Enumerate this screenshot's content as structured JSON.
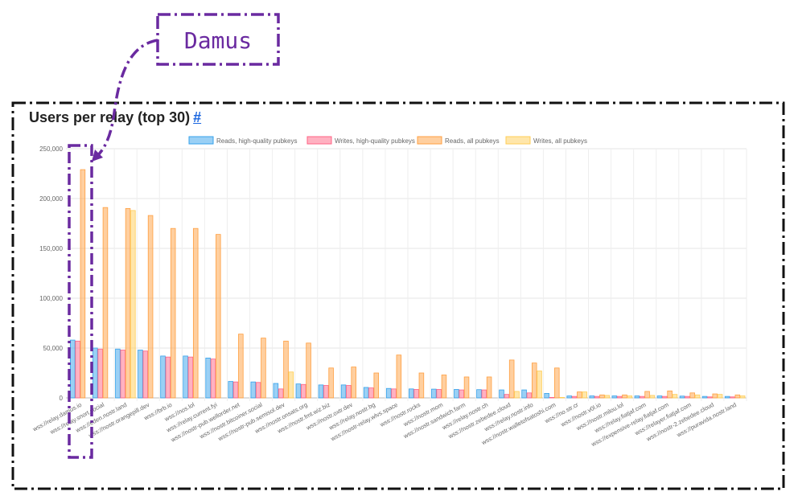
{
  "card": {
    "title": "Users per relay (top 30)",
    "anchor": "#"
  },
  "annotation": {
    "label": "Damus"
  },
  "colors": {
    "annotation": "#6a2aa0",
    "reads_hq": "#36a2eb",
    "writes_hq": "#ff6384",
    "reads_all": "#ff9f40",
    "writes_all": "#ffcd56"
  },
  "chart_data": {
    "type": "bar",
    "ylim": [
      0,
      250000
    ],
    "yticks": [
      "0",
      "50,000",
      "100,000",
      "150,000",
      "200,000",
      "250,000"
    ],
    "grid": true,
    "legend_position": "top",
    "categories": [
      "wss://relay.damus.io",
      "wss://relay.snort.social",
      "wss://eden.nostr.land",
      "wss://nostr.orangepill.dev",
      "wss://brb.io",
      "wss://nos.lol",
      "wss://relay.current.fyi",
      "wss://nostr-pub.wellorder.net",
      "wss://nostr.bitcoiner.social",
      "wss://nostr-pub.semisol.dev",
      "wss://nostr.onsats.org",
      "wss://nostr.fmt.wiz.biz",
      "wss://nostr.oxtr.dev",
      "wss://relay.nostr.bg",
      "wss://nostr-relay.wlvs.space",
      "wss://nostr.rocks",
      "wss://nostr.mom",
      "wss://nostr.sandwich.farm",
      "wss://relay.nostr.ch",
      "wss://nostr.zebedee.cloud",
      "wss://relay.nostr.info",
      "wss://nostr.walletofsatoshi.com",
      "wss://no.str.cr",
      "wss://nostr.v0l.io",
      "wss://nostr.milou.lol",
      "wss://relay.fiatjaf.com",
      "wss://expensive-relay.fiatjaf.com",
      "wss://relayer.fiatjaf.com",
      "wss://nostr-2.zebedee.cloud",
      "wss://puravida.nostr.land"
    ],
    "series": [
      {
        "name": "Reads, high-quality pubkeys",
        "values": [
          58000,
          50000,
          49000,
          48000,
          42000,
          42000,
          40000,
          16500,
          16000,
          14500,
          14000,
          13000,
          13000,
          10500,
          9500,
          9000,
          8800,
          8500,
          8300,
          8000,
          8000,
          4500,
          2000,
          2000,
          2000,
          2000,
          2000,
          1800,
          1500,
          1500
        ]
      },
      {
        "name": "Writes, high-quality pubkeys",
        "values": [
          57000,
          49000,
          48000,
          47000,
          41000,
          41000,
          39000,
          16000,
          15500,
          9000,
          13500,
          12500,
          12500,
          10000,
          9000,
          8500,
          8500,
          8000,
          8000,
          3500,
          5000,
          500,
          1500,
          1500,
          1500,
          1500,
          1500,
          1500,
          1000,
          1000
        ]
      },
      {
        "name": "Reads, all pubkeys",
        "values": [
          229000,
          191000,
          190000,
          183000,
          170000,
          170000,
          164000,
          64000,
          60000,
          57000,
          55000,
          30000,
          31000,
          25000,
          43000,
          25000,
          23000,
          21000,
          21000,
          38000,
          35000,
          30000,
          6000,
          3000,
          3000,
          6500,
          7000,
          5000,
          4000,
          3000
        ]
      },
      {
        "name": "Writes, all pubkeys",
        "values": [
          0,
          0,
          188000,
          0,
          0,
          0,
          0,
          0,
          0,
          26000,
          0,
          0,
          0,
          0,
          0,
          0,
          0,
          0,
          0,
          6500,
          27000,
          500,
          6000,
          2500,
          2000,
          2500,
          3500,
          3000,
          3500,
          2000
        ]
      }
    ]
  }
}
